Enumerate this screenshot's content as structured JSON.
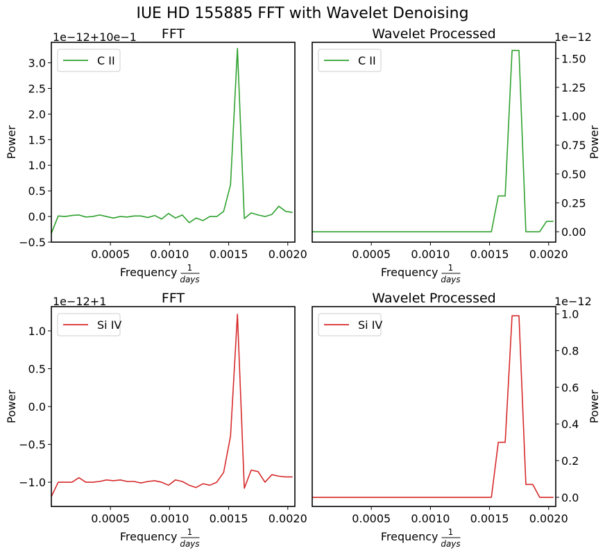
{
  "figure": {
    "title": "IUE HD 155885 FFT with Wavelet Denoising"
  },
  "chart_data": [
    {
      "type": "line",
      "title": "FFT",
      "xlabel": "Frequency",
      "xlabel_fraction": {
        "numerator": "1",
        "denominator": "days"
      },
      "ylabel": "Power",
      "offset_text": "1e−12+10e−1",
      "xlim": [
        0.0,
        0.00206
      ],
      "ylim": [
        -0.5,
        3.4
      ],
      "xticks": [
        0.0005,
        0.001,
        0.0015,
        0.002
      ],
      "xtick_labels": [
        "0.0005",
        "0.0010",
        "0.0015",
        "0.0020"
      ],
      "yticks": [
        -0.5,
        0.0,
        0.5,
        1.0,
        1.5,
        2.0,
        2.5,
        3.0
      ],
      "ytick_labels": [
        "−0.5",
        "0.0",
        "0.5",
        "1.0",
        "1.5",
        "2.0",
        "2.5",
        "3.0"
      ],
      "yaxis_side": "left",
      "legend_position": "upper-left",
      "series": [
        {
          "name": "C II",
          "color": "#2ca02c",
          "x": [
            0.0,
            5.83e-05,
            0.0001166,
            0.0001749,
            0.0002332,
            0.0002915,
            0.0003498,
            0.0004081,
            0.0004664,
            0.0005247,
            0.000583,
            0.0006413,
            0.0006996,
            0.0007579,
            0.0008162,
            0.0008745,
            0.0009328,
            0.0009911,
            0.0010494,
            0.0011077,
            0.001166,
            0.0012243,
            0.0012826,
            0.0013409,
            0.0013992,
            0.0014575,
            0.0015158,
            0.0015741,
            0.0016324,
            0.0016907,
            0.001749,
            0.0018073,
            0.0018656,
            0.0019239,
            0.0019822,
            0.0020405
          ],
          "y": [
            -0.33,
            0.01,
            0.0,
            0.02,
            0.03,
            -0.01,
            0.0,
            0.03,
            0.0,
            -0.03,
            0.0,
            -0.01,
            0.01,
            0.01,
            -0.02,
            0.02,
            -0.05,
            0.06,
            -0.03,
            0.03,
            -0.12,
            -0.03,
            -0.08,
            0.0,
            0.0,
            0.1,
            0.62,
            3.28,
            -0.04,
            0.07,
            0.03,
            0.0,
            0.04,
            0.2,
            0.1,
            0.08
          ]
        }
      ]
    },
    {
      "type": "line",
      "title": "Wavelet Processed",
      "xlabel": "Frequency",
      "xlabel_fraction": {
        "numerator": "1",
        "denominator": "days"
      },
      "ylabel": "Power",
      "offset_text": "1e−12",
      "xlim": [
        0.0,
        0.00206
      ],
      "ylim": [
        -0.09,
        1.64
      ],
      "xticks": [
        0.0005,
        0.001,
        0.0015,
        0.002
      ],
      "xtick_labels": [
        "0.0005",
        "0.0010",
        "0.0015",
        "0.0020"
      ],
      "yticks": [
        0.0,
        0.25,
        0.5,
        0.75,
        1.0,
        1.25,
        1.5
      ],
      "ytick_labels": [
        "0.00",
        "0.25",
        "0.50",
        "0.75",
        "1.00",
        "1.25",
        "1.50"
      ],
      "yaxis_side": "right",
      "legend_position": "upper-left",
      "series": [
        {
          "name": "C II",
          "color": "#2ca02c",
          "x": [
            0.0,
            0.0015158,
            0.0015741,
            0.0016324,
            0.0016907,
            0.001749,
            0.0018073,
            0.0018656,
            0.0019239,
            0.0019822,
            0.0020405
          ],
          "y": [
            0.0,
            0.0,
            0.31,
            0.31,
            1.57,
            1.57,
            0.0,
            0.0,
            0.0,
            0.09,
            0.09
          ]
        }
      ]
    },
    {
      "type": "line",
      "title": "FFT",
      "xlabel": "Frequency",
      "xlabel_fraction": {
        "numerator": "1",
        "denominator": "days"
      },
      "ylabel": "Power",
      "offset_text": "1e−12+1",
      "xlim": [
        0.0,
        0.00206
      ],
      "ylim": [
        -1.32,
        1.32
      ],
      "xticks": [
        0.0005,
        0.001,
        0.0015,
        0.002
      ],
      "xtick_labels": [
        "0.0005",
        "0.0010",
        "0.0015",
        "0.0020"
      ],
      "yticks": [
        -1.0,
        -0.5,
        0.0,
        0.5,
        1.0
      ],
      "ytick_labels": [
        "−1.0",
        "−0.5",
        "0.0",
        "0.5",
        "1.0"
      ],
      "yaxis_side": "left",
      "legend_position": "upper-left",
      "series": [
        {
          "name": "Si IV",
          "color": "#d62728",
          "x": [
            0.0,
            5.83e-05,
            0.0001166,
            0.0001749,
            0.0002332,
            0.0002915,
            0.0003498,
            0.0004081,
            0.0004664,
            0.0005247,
            0.000583,
            0.0006413,
            0.0006996,
            0.0007579,
            0.0008162,
            0.0008745,
            0.0009328,
            0.0009911,
            0.0010494,
            0.0011077,
            0.001166,
            0.0012243,
            0.0012826,
            0.0013409,
            0.0013992,
            0.0014575,
            0.0015158,
            0.0015741,
            0.0016324,
            0.0016907,
            0.001749,
            0.0018073,
            0.0018656,
            0.0019239,
            0.0019822,
            0.0020405
          ],
          "y": [
            -1.19,
            -1.0,
            -1.0,
            -1.0,
            -0.94,
            -1.0,
            -1.0,
            -0.99,
            -0.97,
            -0.98,
            -0.97,
            -0.99,
            -0.99,
            -1.01,
            -0.99,
            -0.98,
            -1.0,
            -1.04,
            -0.97,
            -0.99,
            -1.04,
            -1.07,
            -1.02,
            -1.04,
            -1.0,
            -0.87,
            -0.39,
            1.22,
            -1.08,
            -0.84,
            -0.86,
            -1.0,
            -0.9,
            -0.92,
            -0.93,
            -0.93
          ]
        }
      ]
    },
    {
      "type": "line",
      "title": "Wavelet Processed",
      "xlabel": "Frequency",
      "xlabel_fraction": {
        "numerator": "1",
        "denominator": "days"
      },
      "ylabel": "Power",
      "offset_text": "1e−12",
      "xlim": [
        0.0,
        0.00206
      ],
      "ylim": [
        -0.05,
        1.04
      ],
      "xticks": [
        0.0005,
        0.001,
        0.0015,
        0.002
      ],
      "xtick_labels": [
        "0.0005",
        "0.0010",
        "0.0015",
        "0.0020"
      ],
      "yticks": [
        0.0,
        0.2,
        0.4,
        0.6,
        0.8,
        1.0
      ],
      "ytick_labels": [
        "0.0",
        "0.2",
        "0.4",
        "0.6",
        "0.8",
        "1.0"
      ],
      "yaxis_side": "right",
      "legend_position": "upper-left",
      "series": [
        {
          "name": "Si IV",
          "color": "#d62728",
          "x": [
            0.0,
            0.0015158,
            0.0015741,
            0.0016324,
            0.0016907,
            0.001749,
            0.0018073,
            0.0018656,
            0.0019239,
            0.0019822,
            0.0020405
          ],
          "y": [
            0.0,
            0.0,
            0.3,
            0.3,
            0.99,
            0.99,
            0.07,
            0.07,
            0.0,
            0.0,
            0.0
          ]
        }
      ]
    }
  ]
}
